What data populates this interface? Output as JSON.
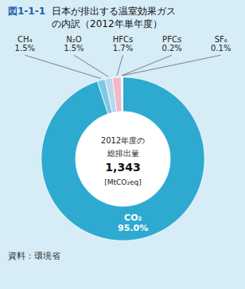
{
  "chart_data": {
    "type": "pie",
    "title": "日本が排出する温室効果ガス\nの内訳（2012年単年度）",
    "annotations": [
      "図1-1-1",
      "2012年度の",
      "総排出量",
      "1,343",
      "[MtCO₂eq]",
      "資料：環境省"
    ],
    "categories": [
      "CO₂",
      "CH₄",
      "N₂O",
      "HFCs",
      "PFCs",
      "SF₆"
    ],
    "values": [
      95.0,
      1.5,
      1.5,
      1.7,
      0.2,
      0.1
    ],
    "value_labels": [
      "95.0%",
      "1.5%",
      "1.5%",
      "1.7%",
      "0.2%",
      "0.1%"
    ],
    "colors": [
      "#2eaad1",
      "#7ec8e3",
      "#b8d8ec",
      "#f0b8c8",
      "#c8c0e0",
      "#e8e8b0"
    ],
    "data_labels": true
  }
}
